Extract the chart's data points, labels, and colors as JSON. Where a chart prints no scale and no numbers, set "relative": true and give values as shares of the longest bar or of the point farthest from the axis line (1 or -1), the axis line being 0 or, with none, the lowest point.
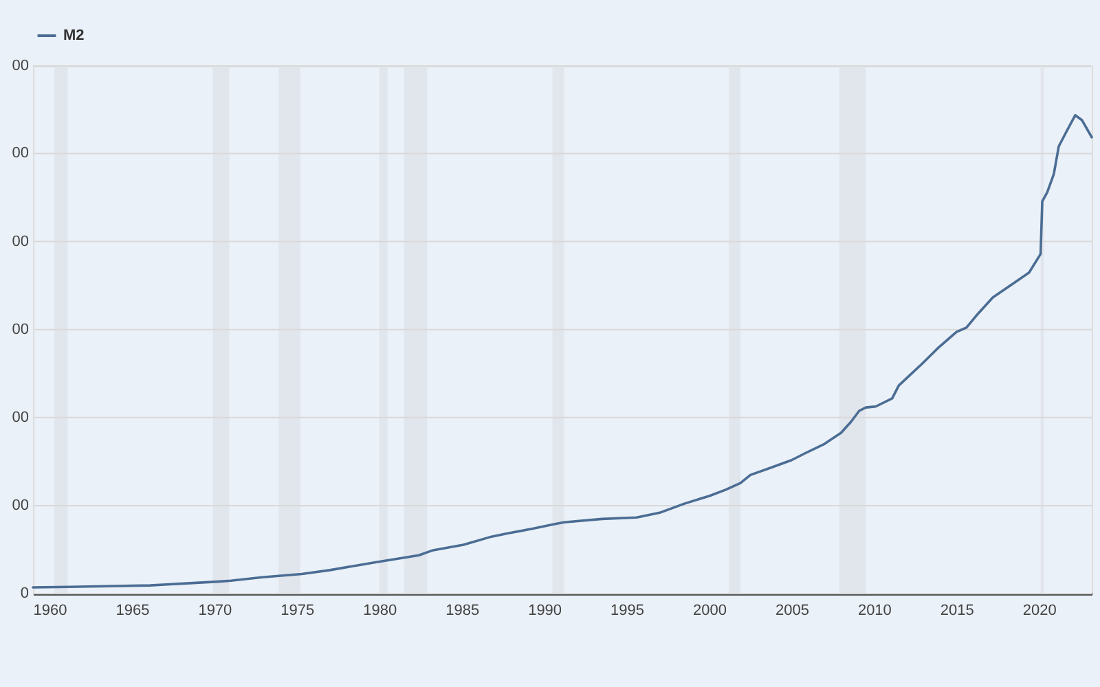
{
  "chart_data": {
    "type": "line",
    "relative": true,
    "x": [
      1959.0,
      1961.2,
      1966.1,
      1970.2,
      1971.0,
      1972.9,
      1975.3,
      1977.0,
      1979.7,
      1982.4,
      1983.2,
      1985.1,
      1986.8,
      1987.8,
      1989.2,
      1990.6,
      1991.2,
      1993.5,
      1995.6,
      1997.0,
      1998.5,
      2000.0,
      2001.0,
      2001.9,
      2002.5,
      2003.8,
      2005.0,
      2005.8,
      2007.0,
      2008.0,
      2008.6,
      2009.1,
      2009.5,
      2010.1,
      2011.1,
      2011.5,
      2012.9,
      2013.9,
      2015.0,
      2015.6,
      2016.3,
      2017.2,
      2018.6,
      2019.4,
      2020.1,
      2020.2,
      2020.5,
      2020.9,
      2021.2,
      2021.7,
      2022.2,
      2022.6,
      2023.2
    ],
    "series": [
      {
        "name": "M2",
        "color": "#4b6d94",
        "values": [
          0.013,
          0.014,
          0.017,
          0.025,
          0.027,
          0.034,
          0.041,
          0.049,
          0.065,
          0.08,
          0.09,
          0.102,
          0.119,
          0.126,
          0.135,
          0.145,
          0.149,
          0.156,
          0.159,
          0.169,
          0.188,
          0.204,
          0.217,
          0.231,
          0.248,
          0.264,
          0.279,
          0.293,
          0.313,
          0.336,
          0.359,
          0.382,
          0.389,
          0.391,
          0.408,
          0.435,
          0.48,
          0.514,
          0.547,
          0.556,
          0.585,
          0.619,
          0.652,
          0.671,
          0.71,
          0.82,
          0.839,
          0.877,
          0.935,
          0.968,
          1,
          0.99,
          0.954
        ]
      }
    ],
    "xlim": [
      1959.0,
      2023.2
    ],
    "xticks": [
      1960,
      1965,
      1970,
      1975,
      1980,
      1985,
      1990,
      1995,
      2000,
      2005,
      2010,
      2015,
      2020
    ],
    "ref_lines": [
      {
        "axis": "y",
        "value": 0,
        "label": "0",
        "color": "#d9d9d9"
      },
      {
        "axis": "y",
        "value": 0.184,
        "color": "#d9d9d9"
      },
      {
        "axis": "y",
        "value": 0.368,
        "color": "#d9d9d9"
      },
      {
        "axis": "y",
        "value": 0.552,
        "color": "#d9d9d9"
      },
      {
        "axis": "y",
        "value": 0.736,
        "color": "#d9d9d9"
      },
      {
        "axis": "y",
        "value": 0.92,
        "color": "#d9d9d9"
      },
      {
        "axis": "y",
        "value": 1.103,
        "color": "#d9d9d9"
      }
    ],
    "annotations": [
      "00",
      "00",
      "00",
      "00",
      "00",
      "00"
    ],
    "bands": [
      {
        "axis": "x",
        "from": 1960.3,
        "to": 1961.1,
        "color": "#e1e5ec"
      },
      {
        "axis": "x",
        "from": 1969.9,
        "to": 1970.9,
        "color": "#e1e5ec"
      },
      {
        "axis": "x",
        "from": 1973.9,
        "to": 1975.2,
        "color": "#e1e5ec"
      },
      {
        "axis": "x",
        "from": 1980.0,
        "to": 1980.5,
        "color": "#e1e5ec"
      },
      {
        "axis": "x",
        "from": 1981.5,
        "to": 1982.9,
        "color": "#e1e5ec"
      },
      {
        "axis": "x",
        "from": 1990.5,
        "to": 1991.2,
        "color": "#e1e5ec"
      },
      {
        "axis": "x",
        "from": 2001.2,
        "to": 2001.9,
        "color": "#e1e5ec"
      },
      {
        "axis": "x",
        "from": 2007.9,
        "to": 2009.5,
        "color": "#e1e5ec"
      },
      {
        "axis": "x",
        "from": 2020.1,
        "to": 2020.3,
        "color": "#e1e5ec"
      }
    ],
    "legend": "top left",
    "line_style": "solid"
  }
}
